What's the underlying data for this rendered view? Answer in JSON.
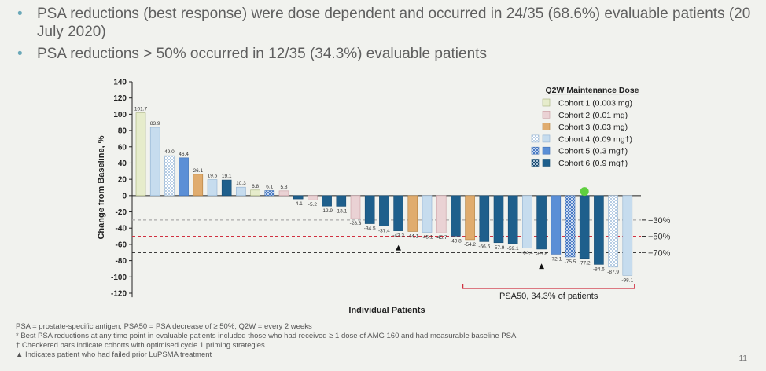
{
  "bullets": [
    "PSA reductions (best response) were dose dependent and occurred in 24/35 (68.6%) evaluable patients (20 July 2020)",
    "PSA reductions > 50% occurred in 12/35 (34.3%) evaluable patients"
  ],
  "footnotes": [
    "PSA = prostate-specific antigen; PSA50 = PSA decrease of ≥ 50%; Q2W = every 2 weeks",
    "* Best PSA reductions at any time point in evaluable patients included those who had received ≥ 1 dose of AMG 160 and had measurable baseline PSA",
    "† Checkered bars indicate cohorts with optimised cycle 1 priming strategies",
    "▲ Indicates patient who had failed prior LuPSMA treatment"
  ],
  "page_number": "11",
  "colors": {
    "cohort1": "#e6eccb",
    "cohort2": "#ead2d4",
    "cohort3": "#e0ac6e",
    "cohort4": "#c6dcee",
    "cohort5": "#5b8fd6",
    "cohort6": "#1e5f8c",
    "psa50": "#d03040"
  },
  "chart_data": {
    "type": "bar",
    "ylabel": "Change from  Baseline, %",
    "xlabel": "Individual Patients",
    "ylim": [
      -130,
      140
    ],
    "yticks": [
      140,
      120,
      100,
      80,
      60,
      40,
      20,
      0,
      -20,
      -40,
      -60,
      -80,
      -100,
      -120
    ],
    "reference_lines": [
      {
        "value": -30,
        "label": "−30%",
        "color": "#aaaaaa"
      },
      {
        "value": -50,
        "label": "−50%",
        "color": "#d03040"
      },
      {
        "value": -70,
        "label": "−70%",
        "color": "#222222"
      }
    ],
    "legend": {
      "title": "Q2W Maintenance Dose",
      "placement": "top-right",
      "entries": [
        {
          "cohort": 1,
          "label": "Cohort 1  (0.003 mg)",
          "checkered": false
        },
        {
          "cohort": 2,
          "label": "Cohort 2  (0.01 mg)",
          "checkered": false
        },
        {
          "cohort": 3,
          "label": "Cohort 3  (0.03 mg)",
          "checkered": false
        },
        {
          "cohort": 4,
          "label": "Cohort 4  (0.09 mg†)",
          "checkered": true
        },
        {
          "cohort": 5,
          "label": "Cohort 5  (0.3 mg†)",
          "checkered": true
        },
        {
          "cohort": 6,
          "label": "Cohort 6  (0.9 mg†)",
          "checkered": true
        }
      ]
    },
    "bars": [
      {
        "value": 101.7,
        "label": "101.7",
        "cohort": 1,
        "checkered": false
      },
      {
        "value": 83.9,
        "label": "83.9",
        "cohort": 4,
        "checkered": false
      },
      {
        "value": 49.0,
        "label": "49.0",
        "cohort": 4,
        "checkered": true
      },
      {
        "value": 46.4,
        "label": "46.4",
        "cohort": 5,
        "checkered": false
      },
      {
        "value": 26.1,
        "label": "26.1",
        "cohort": 3,
        "checkered": false
      },
      {
        "value": 19.6,
        "label": "19.6",
        "cohort": 4,
        "checkered": false
      },
      {
        "value": 19.1,
        "label": "19.1",
        "cohort": 6,
        "checkered": false
      },
      {
        "value": 10.3,
        "label": "10.3",
        "cohort": 4,
        "checkered": false
      },
      {
        "value": 6.8,
        "label": "6.8",
        "cohort": 1,
        "checkered": false
      },
      {
        "value": 6.1,
        "label": "6.1",
        "cohort": 5,
        "checkered": true
      },
      {
        "value": 5.8,
        "label": "5.8",
        "cohort": 2,
        "checkered": false
      },
      {
        "value": -4.1,
        "label": "-4.1",
        "cohort": 6,
        "checkered": false
      },
      {
        "value": -5.2,
        "label": "-5.2",
        "cohort": 2,
        "checkered": false
      },
      {
        "value": -12.9,
        "label": "-12.9",
        "cohort": 6,
        "checkered": false
      },
      {
        "value": -13.1,
        "label": "-13.1",
        "cohort": 6,
        "checkered": false
      },
      {
        "value": -28.3,
        "label": "-28.3",
        "cohort": 2,
        "checkered": false
      },
      {
        "value": -34.5,
        "label": "-34.5",
        "cohort": 6,
        "checkered": false
      },
      {
        "value": -37.4,
        "label": "-37.4",
        "cohort": 6,
        "checkered": false
      },
      {
        "value": -43.3,
        "label": "-43.3",
        "cohort": 6,
        "checkered": false,
        "marker": "triangle"
      },
      {
        "value": -44.1,
        "label": "-44.1",
        "cohort": 3,
        "checkered": false
      },
      {
        "value": -45.1,
        "label": "-45.1",
        "cohort": 4,
        "checkered": false
      },
      {
        "value": -45.7,
        "label": "-45.7",
        "cohort": 2,
        "checkered": false
      },
      {
        "value": -49.8,
        "label": "-49.8",
        "cohort": 6,
        "checkered": false
      },
      {
        "value": -54.2,
        "label": "-54.2",
        "cohort": 3,
        "checkered": false
      },
      {
        "value": -56.6,
        "label": "-56.6",
        "cohort": 6,
        "checkered": false
      },
      {
        "value": -57.9,
        "label": "-57.9",
        "cohort": 6,
        "checkered": false
      },
      {
        "value": -59.1,
        "label": "-59.1",
        "cohort": 6,
        "checkered": false
      },
      {
        "value": -64.4,
        "label": "-64.4",
        "cohort": 4,
        "checkered": false
      },
      {
        "value": -65.8,
        "label": "-65.8",
        "cohort": 6,
        "checkered": false,
        "marker": "triangle"
      },
      {
        "value": -72.1,
        "label": "-72.1",
        "cohort": 5,
        "checkered": false
      },
      {
        "value": -75.5,
        "label": "-75.5",
        "cohort": 5,
        "checkered": true
      },
      {
        "value": -77.2,
        "label": "-77.2",
        "cohort": 6,
        "checkered": false,
        "marker": "green-dot"
      },
      {
        "value": -84.6,
        "label": "-84.6",
        "cohort": 6,
        "checkered": false
      },
      {
        "value": -87.9,
        "label": "-87.9",
        "cohort": 4,
        "checkered": true
      },
      {
        "value": -98.1,
        "label": "-98.1",
        "cohort": 4,
        "checkered": false
      }
    ],
    "psa50_bracket": {
      "from_bar": 24,
      "to_bar": 35,
      "label": "PSA50, 34.3% of patients"
    }
  }
}
